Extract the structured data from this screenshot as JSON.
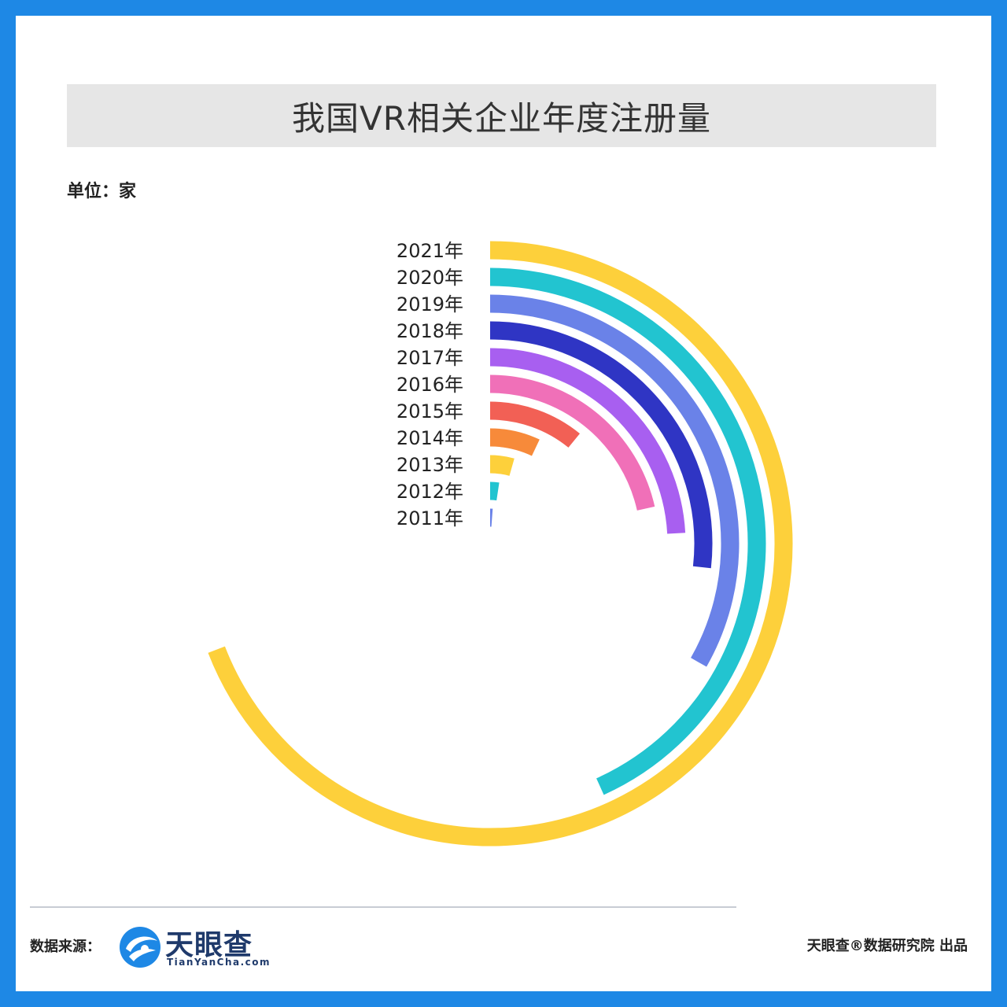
{
  "header": {
    "title": "我国VR相关企业年度注册量"
  },
  "unit_label": "单位：家",
  "footer": {
    "source_label": "数据来源：",
    "logo_name": "天眼查",
    "logo_sub": "TianYanCha.com",
    "credit": "天眼查®数据研究院 出品"
  },
  "chart_data": {
    "type": "radial-bar",
    "categories": [
      "2021年",
      "2020年",
      "2019年",
      "2018年",
      "2017年",
      "2016年",
      "2015年",
      "2014年",
      "2013年",
      "2012年",
      "2011年"
    ],
    "values": [
      235,
      147,
      113,
      91,
      82,
      73,
      37,
      24,
      15,
      8,
      4
    ],
    "colors": [
      "#fdd03b",
      "#22c4d0",
      "#6a82e8",
      "#2f35c4",
      "#a85ff0",
      "#f070b8",
      "#f26055",
      "#f78a3a",
      "#fdd03b",
      "#22c4d0",
      "#6a82e8"
    ],
    "full_circle_value": 340,
    "ylabel": "家",
    "legend": "none"
  }
}
